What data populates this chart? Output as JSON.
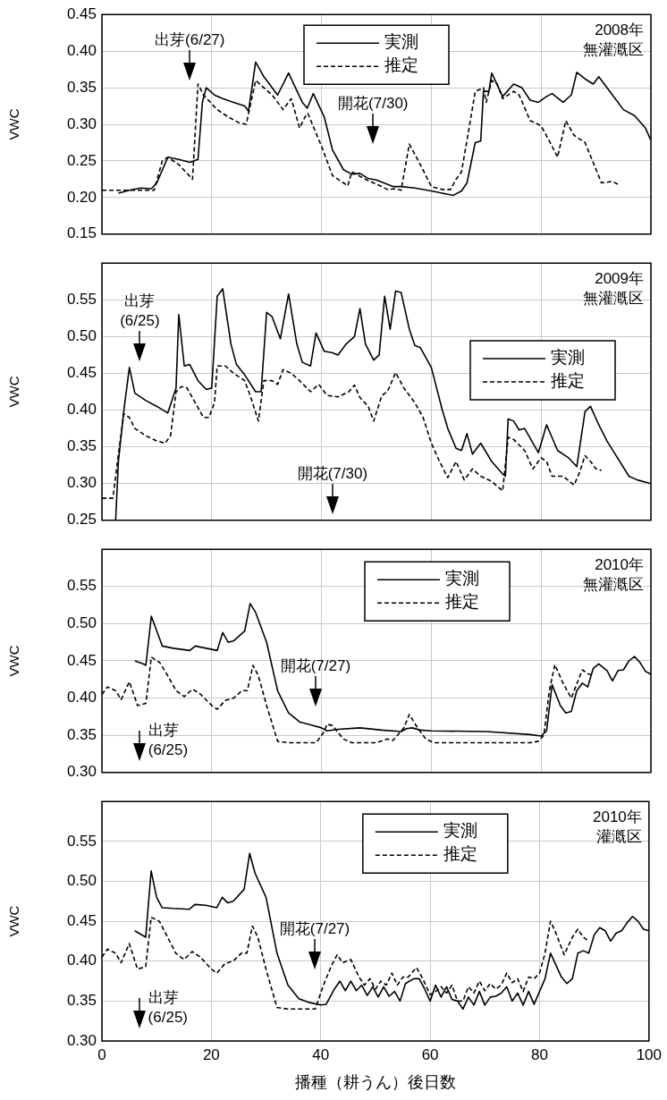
{
  "chart_data": [
    {
      "type": "line",
      "ylabel": "VWC",
      "xlim": [
        0,
        100
      ],
      "xticks": [
        0,
        20,
        40,
        60,
        80,
        100
      ],
      "ylim": [
        0.15,
        0.45
      ],
      "yticks": [
        0.15,
        {
          "value": 0.2,
          "label": "0.20"
        },
        0.25,
        {
          "value": 0.3,
          "label": "0.30"
        },
        0.35,
        {
          "value": 0.4,
          "label": "0.40"
        },
        0.45
      ],
      "grid": true,
      "legend": "top",
      "tick_labels": "y",
      "annotations": [
        "2008年",
        "無灌漑区",
        "出芽(6/27)",
        "開花(7/30)"
      ],
      "series": [
        {
          "name": "実測",
          "color": "#000000",
          "line_style": "solid",
          "x": [
            3,
            5,
            7,
            9,
            10,
            12,
            14,
            16,
            17.5,
            18.3,
            19,
            20.5,
            22,
            24,
            26,
            26.7,
            28,
            29.5,
            32,
            34,
            36.5,
            37.4,
            38.5,
            40.5,
            42,
            44,
            45.5,
            47,
            48.5,
            50,
            53,
            54.5,
            57,
            60,
            62,
            64,
            65.5,
            66.5,
            68,
            69,
            69.5,
            70.5,
            71,
            73,
            75,
            76.5,
            78,
            79.5,
            81,
            82,
            84,
            85.5,
            86.5,
            88,
            89.5,
            90.5,
            93,
            95,
            97,
            99,
            100
          ],
          "values": [
            0.206,
            0.21,
            0.213,
            0.212,
            0.22,
            0.255,
            0.252,
            0.248,
            0.252,
            0.33,
            0.35,
            0.34,
            0.335,
            0.33,
            0.325,
            0.318,
            0.385,
            0.365,
            0.34,
            0.37,
            0.33,
            0.322,
            0.342,
            0.31,
            0.265,
            0.238,
            0.232,
            0.233,
            0.226,
            0.224,
            0.215,
            0.215,
            0.213,
            0.209,
            0.206,
            0.203,
            0.209,
            0.22,
            0.275,
            0.277,
            0.345,
            0.345,
            0.37,
            0.338,
            0.355,
            0.35,
            0.333,
            0.33,
            0.338,
            0.342,
            0.33,
            0.34,
            0.371,
            0.362,
            0.355,
            0.365,
            0.34,
            0.32,
            0.312,
            0.295,
            0.278
          ]
        },
        {
          "name": "推定",
          "color": "#000000",
          "line_style": "dashed",
          "x": [
            0,
            9.5,
            11,
            12,
            14,
            16.5,
            17.5,
            18.5,
            21,
            23,
            25,
            26.3,
            27,
            28,
            31,
            33,
            34.5,
            36,
            37,
            37.5,
            40,
            42,
            44,
            44.8,
            45.5,
            48,
            51,
            52,
            53.5,
            54.5,
            56,
            58,
            60,
            62,
            63.5,
            64.5,
            65.5,
            67,
            68,
            69.5,
            70,
            71,
            72,
            73,
            75,
            76,
            78,
            80,
            82,
            83,
            84.5,
            86,
            88,
            91,
            93,
            94
          ],
          "values": [
            0.21,
            0.21,
            0.25,
            0.255,
            0.245,
            0.225,
            0.355,
            0.34,
            0.32,
            0.31,
            0.302,
            0.3,
            0.325,
            0.36,
            0.34,
            0.32,
            0.335,
            0.295,
            0.31,
            0.315,
            0.27,
            0.23,
            0.22,
            0.216,
            0.235,
            0.225,
            0.215,
            0.211,
            0.212,
            0.21,
            0.273,
            0.245,
            0.215,
            0.211,
            0.211,
            0.225,
            0.235,
            0.3,
            0.345,
            0.35,
            0.33,
            0.36,
            0.355,
            0.335,
            0.345,
            0.34,
            0.305,
            0.298,
            0.27,
            0.255,
            0.305,
            0.285,
            0.275,
            0.22,
            0.222,
            0.218
          ]
        }
      ]
    },
    {
      "type": "line",
      "ylabel": "VWC",
      "xlim": [
        0,
        100
      ],
      "xticks": [
        0,
        20,
        40,
        60,
        80,
        100
      ],
      "ylim": [
        0.25,
        0.6
      ],
      "yticks": [
        0.25,
        {
          "value": 0.3,
          "label": "0.30"
        },
        0.35,
        {
          "value": 0.4,
          "label": "0.40"
        },
        0.45,
        {
          "value": 0.5,
          "label": "0.50"
        },
        0.55
      ],
      "grid": true,
      "legend": "right",
      "tick_labels": "y",
      "annotations": [
        "2009年",
        "無灌漑区",
        "出芽(6/25)",
        "開花(7/30)"
      ],
      "series": [
        {
          "name": "実測",
          "color": "#000000",
          "line_style": "solid",
          "x": [
            2.5,
            3,
            4,
            5,
            6,
            8,
            10,
            12,
            13.5,
            14,
            15,
            16,
            17.5,
            19,
            20,
            21,
            22,
            23.5,
            24.5,
            26,
            28,
            29,
            30,
            31,
            32.5,
            34,
            35.5,
            36.5,
            38,
            39,
            40.5,
            42,
            43,
            44.5,
            46,
            47,
            48,
            49.5,
            50.5,
            51.5,
            52.5,
            53.5,
            54.5,
            56,
            57,
            58,
            60,
            62,
            63,
            64.5,
            65.5,
            66.5,
            67.5,
            69,
            71,
            73,
            73.5,
            74,
            75,
            76,
            77,
            79.5,
            81,
            83,
            85,
            86.5,
            88,
            89,
            90.5,
            92,
            93.5,
            96,
            97.5,
            100
          ],
          "values": [
            0.25,
            0.33,
            0.4,
            0.458,
            0.423,
            0.413,
            0.405,
            0.396,
            0.43,
            0.53,
            0.46,
            0.462,
            0.44,
            0.428,
            0.43,
            0.555,
            0.565,
            0.49,
            0.462,
            0.448,
            0.425,
            0.425,
            0.533,
            0.527,
            0.497,
            0.558,
            0.49,
            0.465,
            0.46,
            0.505,
            0.48,
            0.478,
            0.475,
            0.49,
            0.5,
            0.538,
            0.49,
            0.468,
            0.475,
            0.555,
            0.51,
            0.562,
            0.56,
            0.51,
            0.488,
            0.485,
            0.458,
            0.4,
            0.375,
            0.348,
            0.345,
            0.368,
            0.34,
            0.355,
            0.33,
            0.313,
            0.31,
            0.388,
            0.385,
            0.373,
            0.375,
            0.342,
            0.38,
            0.345,
            0.335,
            0.323,
            0.398,
            0.405,
            0.38,
            0.358,
            0.34,
            0.31,
            0.305,
            0.3
          ]
        },
        {
          "name": "推定",
          "color": "#000000",
          "line_style": "dashed",
          "x": [
            0,
            2,
            3,
            4,
            5,
            6,
            8,
            10,
            11.5,
            12.5,
            13.5,
            14.5,
            15.5,
            17,
            18.5,
            19.5,
            20.5,
            21,
            22.5,
            24,
            26,
            27,
            28.5,
            29.5,
            31,
            32,
            33,
            34.5,
            36,
            38,
            39.5,
            41,
            43,
            45,
            46,
            47,
            48.5,
            49.5,
            51,
            52,
            53.5,
            55,
            57,
            58.5,
            60,
            61.5,
            63,
            64.5,
            66,
            67.5,
            69,
            71,
            73,
            74,
            75,
            77,
            78.5,
            80,
            81,
            82,
            84,
            86,
            87,
            88,
            89,
            90,
            91
          ],
          "values": [
            0.28,
            0.28,
            0.34,
            0.395,
            0.39,
            0.375,
            0.365,
            0.358,
            0.355,
            0.365,
            0.425,
            0.432,
            0.43,
            0.41,
            0.39,
            0.39,
            0.41,
            0.46,
            0.46,
            0.45,
            0.44,
            0.42,
            0.385,
            0.44,
            0.44,
            0.435,
            0.455,
            0.45,
            0.44,
            0.425,
            0.435,
            0.42,
            0.418,
            0.425,
            0.434,
            0.417,
            0.405,
            0.385,
            0.42,
            0.425,
            0.451,
            0.43,
            0.41,
            0.39,
            0.355,
            0.33,
            0.308,
            0.33,
            0.305,
            0.32,
            0.31,
            0.303,
            0.29,
            0.363,
            0.36,
            0.345,
            0.32,
            0.335,
            0.33,
            0.31,
            0.31,
            0.298,
            0.315,
            0.338,
            0.33,
            0.32,
            0.318
          ]
        }
      ]
    },
    {
      "type": "line",
      "ylabel": "VWC",
      "xlim": [
        0,
        100
      ],
      "xticks": [
        0,
        20,
        40,
        60,
        80,
        100
      ],
      "ylim": [
        0.3,
        0.6
      ],
      "yticks": [
        {
          "value": 0.3,
          "label": "0.30"
        },
        0.35,
        {
          "value": 0.4,
          "label": "0.40"
        },
        0.45,
        {
          "value": 0.5,
          "label": "0.50"
        },
        0.55
      ],
      "grid": true,
      "legend": "top right",
      "tick_labels": "y",
      "annotations": [
        "2010年",
        "無灌漑区",
        "開花(7/27)",
        "出芽(6/25)"
      ],
      "series": [
        {
          "name": "実測",
          "color": "#000000",
          "line_style": "solid",
          "x": [
            6,
            7.5,
            8,
            9,
            10,
            11,
            13,
            16,
            17,
            19,
            21,
            22,
            23,
            24,
            26,
            27,
            28,
            30,
            32,
            34,
            36,
            38,
            40,
            41,
            43,
            47,
            51,
            54.5,
            55.5,
            56.5,
            58,
            60,
            70,
            78,
            80,
            81,
            82,
            83.5,
            84.5,
            85.5,
            86.5,
            87.5,
            88.5,
            89.5,
            90.5,
            92,
            93,
            94,
            95,
            96,
            97,
            98,
            99,
            100
          ],
          "values": [
            0.45,
            0.446,
            0.444,
            0.51,
            0.49,
            0.47,
            0.467,
            0.464,
            0.47,
            0.467,
            0.464,
            0.488,
            0.475,
            0.477,
            0.49,
            0.527,
            0.515,
            0.475,
            0.41,
            0.38,
            0.368,
            0.364,
            0.36,
            0.356,
            0.358,
            0.36,
            0.357,
            0.355,
            0.359,
            0.36,
            0.357,
            0.356,
            0.355,
            0.351,
            0.349,
            0.356,
            0.418,
            0.39,
            0.38,
            0.382,
            0.41,
            0.42,
            0.415,
            0.44,
            0.446,
            0.437,
            0.423,
            0.437,
            0.438,
            0.45,
            0.456,
            0.448,
            0.436,
            0.432
          ]
        },
        {
          "name": "推定",
          "color": "#000000",
          "line_style": "dashed",
          "x": [
            0,
            1,
            2.5,
            3.5,
            5,
            6.5,
            8,
            9,
            10.5,
            12,
            13.5,
            15,
            16.5,
            18,
            20,
            21,
            22.5,
            24,
            25.5,
            26.5,
            27.5,
            28.5,
            30,
            32,
            34,
            39,
            40.5,
            41,
            42,
            44,
            45.5,
            50,
            52,
            53,
            55,
            56,
            57.5,
            59,
            60.5,
            78,
            79.5,
            80.5,
            81.5,
            82.5,
            84,
            85.5,
            87.5,
            88.5,
            89.5
          ],
          "values": [
            0.405,
            0.415,
            0.41,
            0.398,
            0.422,
            0.39,
            0.393,
            0.455,
            0.448,
            0.43,
            0.41,
            0.402,
            0.412,
            0.405,
            0.39,
            0.385,
            0.397,
            0.4,
            0.41,
            0.41,
            0.444,
            0.43,
            0.39,
            0.342,
            0.34,
            0.34,
            0.355,
            0.365,
            0.363,
            0.345,
            0.34,
            0.34,
            0.345,
            0.343,
            0.36,
            0.378,
            0.36,
            0.345,
            0.34,
            0.34,
            0.342,
            0.35,
            0.41,
            0.445,
            0.42,
            0.4,
            0.438,
            0.433,
            0.43
          ]
        }
      ]
    },
    {
      "type": "line",
      "ylabel": "VWC",
      "xlabel": "播種（耕うん）後日数",
      "xlim": [
        0,
        100
      ],
      "xticks": [
        0,
        20,
        40,
        60,
        80,
        100
      ],
      "ylim": [
        0.3,
        0.6
      ],
      "yticks": [
        {
          "value": 0.3,
          "label": "0.30"
        },
        0.35,
        {
          "value": 0.4,
          "label": "0.40"
        },
        0.45,
        {
          "value": 0.5,
          "label": "0.50"
        },
        0.55
      ],
      "grid": true,
      "legend": "top right",
      "annotations": [
        "2010年",
        "灌漑区",
        "開花(7/27)",
        "出芽(6/25)"
      ],
      "series": [
        {
          "name": "実測",
          "color": "#000000",
          "line_style": "solid",
          "x": [
            6,
            8,
            9,
            10,
            11,
            13,
            16,
            17,
            19,
            21,
            22,
            23,
            24,
            26,
            27,
            28,
            30,
            32,
            34,
            36,
            38,
            40,
            41,
            42.5,
            43.5,
            44.5,
            45.5,
            46.5,
            47.5,
            48.5,
            49.5,
            50.5,
            51.5,
            52.5,
            53.5,
            54.5,
            55.5,
            57,
            58,
            59,
            60,
            61,
            62,
            63,
            64,
            65,
            66,
            67,
            68,
            69,
            70,
            71,
            72,
            73,
            74,
            75,
            76,
            77,
            78,
            79,
            80,
            81,
            82,
            83,
            84,
            85,
            86,
            87,
            88,
            89,
            90,
            91,
            92,
            93,
            94,
            95,
            96,
            97,
            98,
            99,
            100
          ],
          "values": [
            0.438,
            0.43,
            0.513,
            0.48,
            0.467,
            0.466,
            0.465,
            0.471,
            0.47,
            0.467,
            0.48,
            0.473,
            0.475,
            0.49,
            0.535,
            0.51,
            0.48,
            0.41,
            0.37,
            0.353,
            0.348,
            0.345,
            0.346,
            0.365,
            0.375,
            0.363,
            0.375,
            0.363,
            0.37,
            0.357,
            0.368,
            0.355,
            0.368,
            0.356,
            0.362,
            0.35,
            0.372,
            0.378,
            0.378,
            0.365,
            0.35,
            0.37,
            0.355,
            0.368,
            0.352,
            0.35,
            0.34,
            0.355,
            0.345,
            0.362,
            0.345,
            0.355,
            0.356,
            0.36,
            0.368,
            0.35,
            0.36,
            0.345,
            0.362,
            0.346,
            0.362,
            0.378,
            0.41,
            0.395,
            0.38,
            0.372,
            0.378,
            0.41,
            0.413,
            0.41,
            0.433,
            0.442,
            0.438,
            0.425,
            0.435,
            0.438,
            0.448,
            0.456,
            0.45,
            0.44,
            0.438
          ]
        },
        {
          "name": "推定",
          "color": "#000000",
          "line_style": "dashed",
          "x": [
            0,
            1,
            2.5,
            3.5,
            5,
            6.5,
            8,
            9,
            10.5,
            12,
            13.5,
            15,
            16.5,
            18,
            20,
            21,
            22.5,
            24,
            25.5,
            26.5,
            27.5,
            28.5,
            30,
            32,
            34,
            39,
            40.5,
            42,
            43,
            44,
            45.5,
            47,
            48,
            49,
            50,
            51,
            52,
            53,
            54,
            55,
            56,
            57.5,
            58.5,
            60,
            61,
            62,
            63,
            64,
            65,
            66,
            67,
            68,
            69,
            70,
            71,
            72,
            73,
            74,
            75,
            76,
            77,
            78,
            79,
            80,
            81,
            82,
            83,
            84.5,
            86,
            87,
            88,
            89
          ],
          "values": [
            0.405,
            0.415,
            0.41,
            0.398,
            0.422,
            0.39,
            0.393,
            0.455,
            0.45,
            0.43,
            0.41,
            0.402,
            0.412,
            0.405,
            0.39,
            0.385,
            0.397,
            0.4,
            0.41,
            0.41,
            0.444,
            0.43,
            0.39,
            0.342,
            0.34,
            0.34,
            0.37,
            0.395,
            0.408,
            0.398,
            0.402,
            0.38,
            0.37,
            0.378,
            0.365,
            0.375,
            0.37,
            0.385,
            0.37,
            0.38,
            0.38,
            0.392,
            0.38,
            0.358,
            0.362,
            0.368,
            0.36,
            0.37,
            0.35,
            0.35,
            0.368,
            0.36,
            0.375,
            0.363,
            0.372,
            0.365,
            0.37,
            0.385,
            0.373,
            0.378,
            0.362,
            0.38,
            0.378,
            0.385,
            0.41,
            0.45,
            0.435,
            0.408,
            0.43,
            0.44,
            0.43,
            0.425
          ]
        }
      ]
    }
  ]
}
